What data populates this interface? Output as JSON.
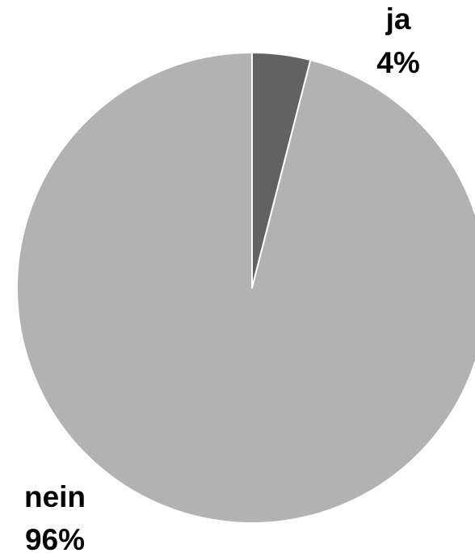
{
  "chart_data": {
    "type": "pie",
    "start_angle": "12 o'clock",
    "direction": "clockwise",
    "slices": [
      {
        "label": "ja",
        "value": 4,
        "value_label": "4%",
        "color": "#626262"
      },
      {
        "label": "nein",
        "value": 96,
        "value_label": "96%",
        "color": "#b2b2b2"
      }
    ],
    "slice_border_color": "#ffffff"
  }
}
